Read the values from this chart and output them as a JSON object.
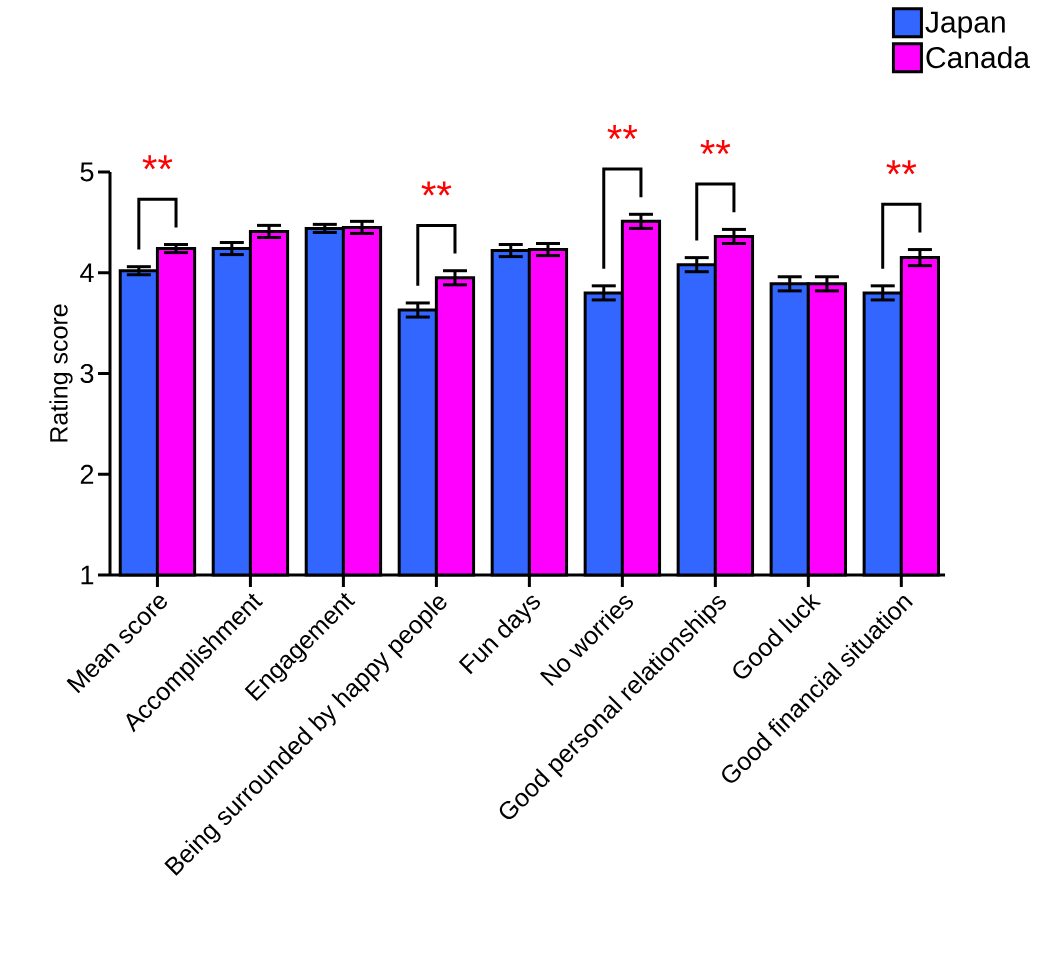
{
  "chart_data": {
    "type": "bar",
    "ylabel": "Rating score",
    "categories": [
      "Mean score",
      "Accomplishment",
      "Engagement",
      "Being surrounded by happy people",
      "Fun days",
      "No worries",
      "Good personal relationships",
      "Good luck",
      "Good financial situation"
    ],
    "series": [
      {
        "name": "Japan",
        "color": "#3366ff",
        "values": [
          4.02,
          4.24,
          4.44,
          3.63,
          4.22,
          3.8,
          4.08,
          3.89,
          3.8
        ],
        "errors": [
          0.04,
          0.06,
          0.04,
          0.07,
          0.06,
          0.07,
          0.07,
          0.07,
          0.07
        ]
      },
      {
        "name": "Canada",
        "color": "#ff00ff",
        "values": [
          4.24,
          4.41,
          4.45,
          3.95,
          4.23,
          4.51,
          4.36,
          3.89,
          4.15
        ],
        "errors": [
          0.04,
          0.06,
          0.06,
          0.07,
          0.06,
          0.07,
          0.07,
          0.07,
          0.08
        ]
      }
    ],
    "ylim": [
      1,
      5
    ],
    "yticks": [
      1,
      2,
      3,
      4,
      5
    ],
    "legend": "top right",
    "annotations": [
      "**",
      "**",
      "**",
      "**",
      "**"
    ]
  }
}
